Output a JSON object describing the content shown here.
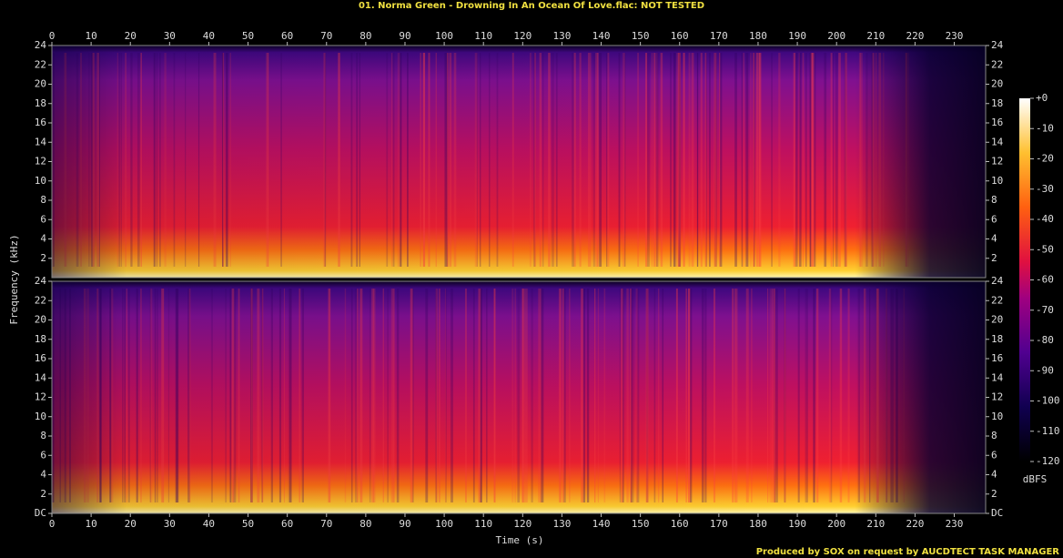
{
  "chart_data": {
    "type": "spectrogram",
    "title": "01. Norma Green - Drowning In An Ocean Of Love.flac: NOT TESTED",
    "x_label": "Time (s)",
    "y_label": "Frequency (kHz)",
    "xlim": [
      0,
      238
    ],
    "xticks": [
      0,
      10,
      20,
      30,
      40,
      50,
      60,
      70,
      80,
      90,
      100,
      110,
      120,
      130,
      140,
      150,
      160,
      170,
      180,
      190,
      200,
      210,
      220,
      230
    ],
    "ylim": [
      0,
      24
    ],
    "yticks": [
      {
        "value": 0,
        "label": "DC"
      },
      2,
      4,
      6,
      8,
      10,
      12,
      14,
      16,
      18,
      20,
      22,
      24
    ],
    "channels": 2,
    "colorbar": {
      "label": "dBFS",
      "lim": [
        -120,
        0
      ],
      "ticks": [
        {
          "value": 0,
          "label": "+0"
        },
        -10,
        -20,
        -30,
        -40,
        -50,
        -60,
        -70,
        -80,
        -90,
        -100,
        -110,
        -120
      ]
    },
    "footer": "Produced by SOX on request by AUCDTECT TASK MANAGER"
  }
}
